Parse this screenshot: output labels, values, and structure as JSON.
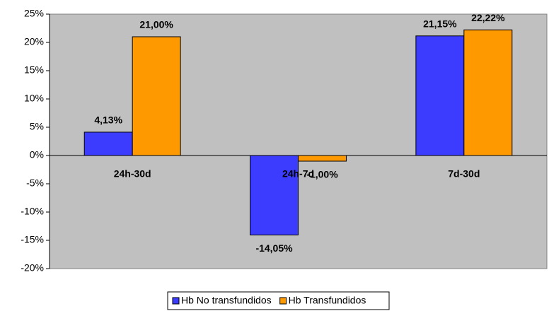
{
  "chart_data": {
    "type": "bar",
    "categories": [
      "24h-30d",
      "24h-7d",
      "7d-30d"
    ],
    "series": [
      {
        "name": "Hb No transfundidos",
        "color": "#3c3cff",
        "values": [
          4.13,
          -14.05,
          21.15
        ],
        "value_labels": [
          "4,13%",
          "-14,05%",
          "21,15%"
        ]
      },
      {
        "name": "Hb Transfundidos",
        "color": "#ff9900",
        "values": [
          21.0,
          -1.0,
          22.22
        ],
        "value_labels": [
          "21,00%",
          "-1,00%",
          "22,22%"
        ]
      }
    ],
    "ylim": [
      -20,
      25
    ],
    "yticks": [
      {
        "value": -20,
        "label": "-20%"
      },
      {
        "value": -15,
        "label": "-15%"
      },
      {
        "value": -10,
        "label": "-10%"
      },
      {
        "value": -5,
        "label": "-5%"
      },
      {
        "value": 0,
        "label": "0%"
      },
      {
        "value": 5,
        "label": "5%"
      },
      {
        "value": 10,
        "label": "10%"
      },
      {
        "value": 15,
        "label": "15%"
      },
      {
        "value": 20,
        "label": "20%"
      },
      {
        "value": 25,
        "label": "25%"
      }
    ],
    "grid": false,
    "legend": "bottom"
  }
}
